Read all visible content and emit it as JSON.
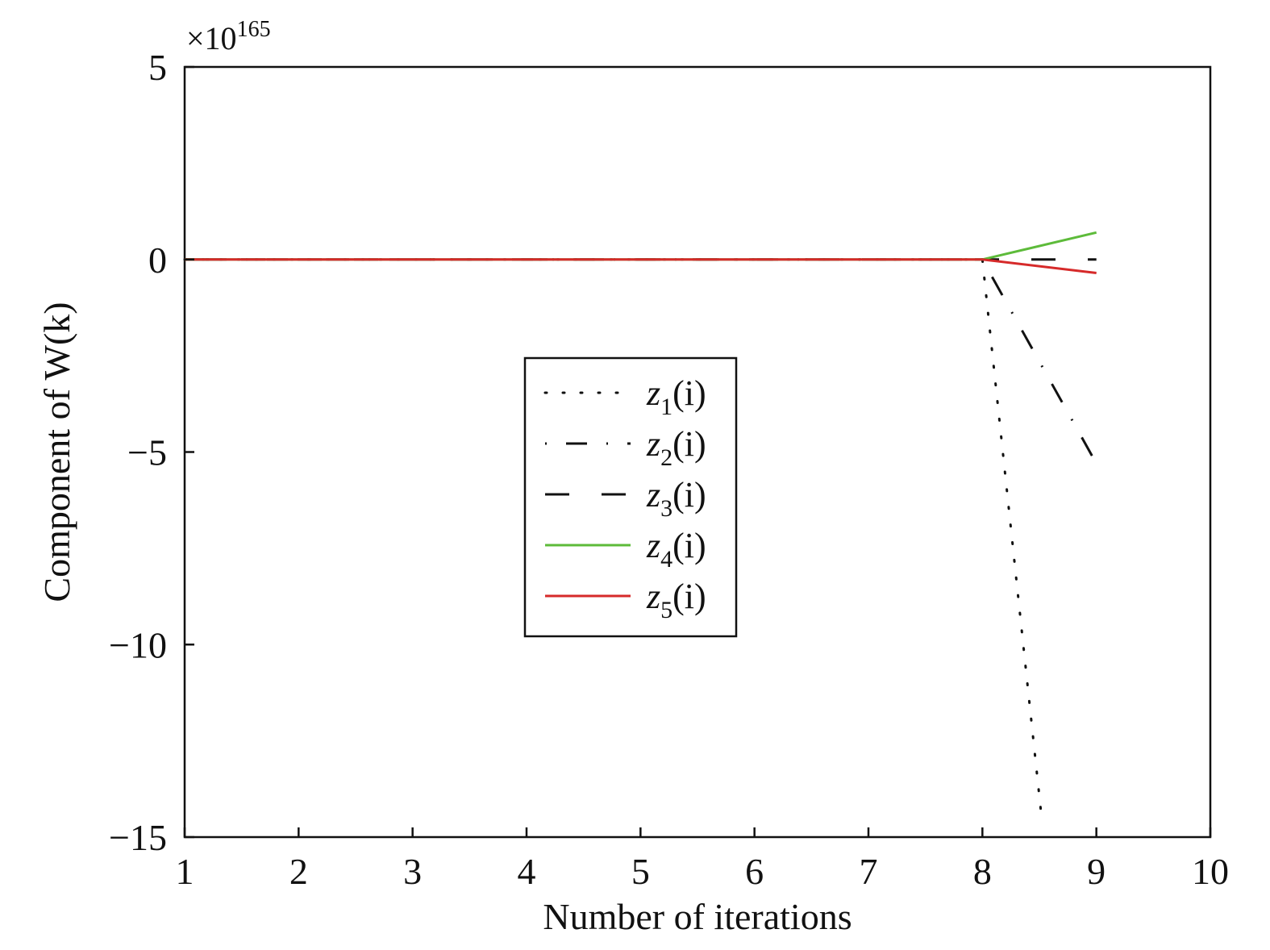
{
  "chart_data": {
    "type": "line",
    "xlabel": "Number of iterations",
    "ylabel": "Component of W(k)",
    "y_multiplier_label": "×10",
    "y_multiplier_exponent": "165",
    "xlim": [
      1,
      10
    ],
    "ylim": [
      -15,
      5
    ],
    "x_ticks": [
      1,
      2,
      3,
      4,
      5,
      6,
      7,
      8,
      9,
      10
    ],
    "y_ticks": [
      5,
      0,
      -5,
      -10,
      -15
    ],
    "y_tick_labels": [
      "5",
      "0",
      "−5",
      "−10",
      "−15"
    ],
    "grid": false,
    "legend_position": "center",
    "series": [
      {
        "name": "z1(i)",
        "name_base": "z",
        "name_sub": "1",
        "name_arg": "(i)",
        "style": "dotted",
        "color": "#111111",
        "x": [
          1,
          2,
          3,
          4,
          5,
          6,
          7,
          8,
          8.52
        ],
        "y": [
          0,
          0,
          0,
          0,
          0,
          0,
          0,
          0,
          -14.5
        ]
      },
      {
        "name": "z2(i)",
        "name_base": "z",
        "name_sub": "2",
        "name_arg": "(i)",
        "style": "dashdot",
        "color": "#111111",
        "x": [
          1,
          2,
          3,
          4,
          5,
          6,
          7,
          8,
          9
        ],
        "y": [
          0,
          0,
          0,
          0,
          0,
          0,
          0,
          0,
          -5.3
        ]
      },
      {
        "name": "z3(i)",
        "name_base": "z",
        "name_sub": "3",
        "name_arg": "(i)",
        "style": "dashed",
        "color": "#111111",
        "x": [
          1,
          2,
          3,
          4,
          5,
          6,
          7,
          8,
          9
        ],
        "y": [
          0,
          0,
          0,
          0,
          0,
          0,
          0,
          0,
          0
        ]
      },
      {
        "name": "z4(i)",
        "name_base": "z",
        "name_sub": "4",
        "name_arg": "(i)",
        "style": "solid",
        "color": "#5dbb3a",
        "x": [
          1,
          2,
          3,
          4,
          5,
          6,
          7,
          8,
          9
        ],
        "y": [
          0,
          0,
          0,
          0,
          0,
          0,
          0,
          0,
          0.7
        ]
      },
      {
        "name": "z5(i)",
        "name_base": "z",
        "name_sub": "5",
        "name_arg": "(i)",
        "style": "solid",
        "color": "#d62a2a",
        "x": [
          1,
          2,
          3,
          4,
          5,
          6,
          7,
          8,
          9
        ],
        "y": [
          0,
          0,
          0,
          0,
          0,
          0,
          0,
          0,
          -0.35
        ]
      }
    ]
  }
}
